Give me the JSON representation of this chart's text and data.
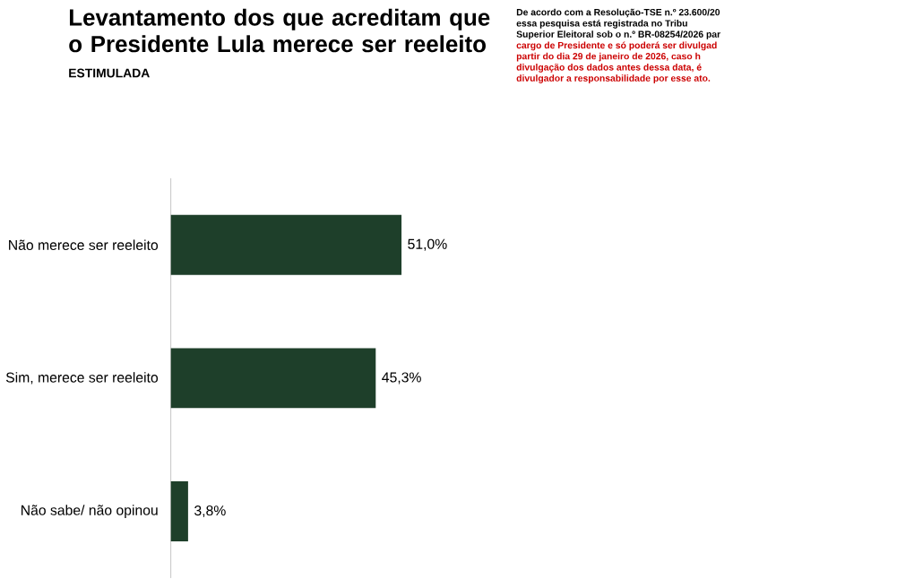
{
  "chart_data": {
    "type": "bar",
    "orientation": "horizontal",
    "title": "Levantamento dos que acreditam que o Presidente Lula merece ser reeleito",
    "subtitle": "ESTIMULADA",
    "annotations": [
      "De acordo com a Resolução-TSE n.º 23.600/20",
      "essa pesquisa está registrada no Tribu",
      "Superior Eleitoral sob o n.º BR-08254/2026 par",
      "cargo de Presidente e só poderá ser divulgad",
      "partir do dia 29 de janeiro de 2026, caso h",
      "divulgação dos dados antes dessa data, é",
      "divulgador a responsabilidade por esse ato."
    ],
    "categories": [
      "Não merece ser reeleito",
      "Sim, merece ser reeleito",
      "Não sabe/ não opinou"
    ],
    "values": [
      51.0,
      45.3,
      3.8
    ],
    "value_labels": [
      "51,0%",
      "45,3%",
      "3,8%"
    ],
    "color": "#1e3f2a"
  }
}
